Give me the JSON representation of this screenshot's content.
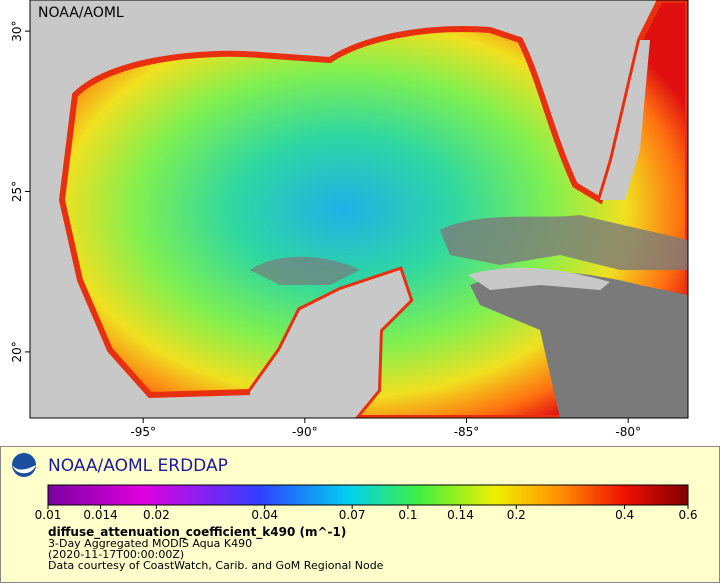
{
  "map": {
    "watermark": "NOAA/AOML",
    "xlim": [
      -98.5,
      -78.15
    ],
    "ylim": [
      17.94,
      30.97
    ],
    "xticks": [
      {
        "value": -95,
        "label": "-95°"
      },
      {
        "value": -90,
        "label": "-90°"
      },
      {
        "value": -85,
        "label": "-85°"
      },
      {
        "value": -80,
        "label": "-80°"
      }
    ],
    "yticks": [
      {
        "value": 30,
        "label": "30°"
      },
      {
        "value": 25,
        "label": "25°"
      },
      {
        "value": 20,
        "label": "20°"
      }
    ]
  },
  "legend": {
    "brand": "NOAA/AOML ERDDAP",
    "colorbar": {
      "log_scale": true,
      "lim": [
        0.01,
        0.6
      ],
      "ticks": [
        0.01,
        0.014,
        0.02,
        0.04,
        0.07,
        0.1,
        0.14,
        0.2,
        0.4,
        0.6
      ]
    },
    "variable": "diffuse_attenuation_coefficient_k490 (m^-1)",
    "lines": [
      "3-Day Aggregated MODIS Aqua K490",
      "(2020-11-17T00:00:00Z)",
      "Data courtesy of CoastWatch, Carib. and GoM Regional Node"
    ]
  }
}
